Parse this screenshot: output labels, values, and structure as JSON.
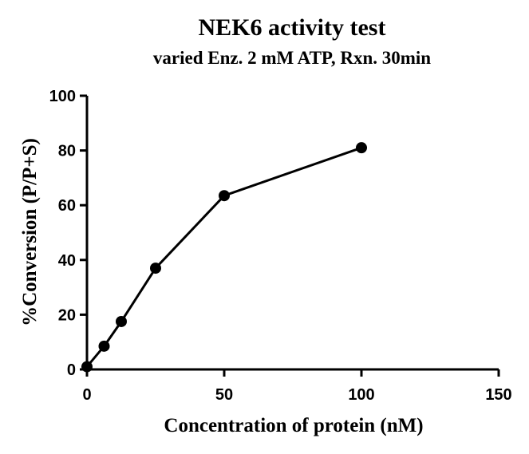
{
  "chart_data": {
    "type": "line",
    "title": "NEK6 activity test",
    "subtitle": "varied Enz. 2 mM ATP, Rxn. 30min",
    "xlabel": "Concentration of protein (nM)",
    "ylabel": "%Conversion (P/P+S)",
    "xlim": [
      0,
      150
    ],
    "ylim": [
      0,
      100
    ],
    "xticks": [
      0,
      50,
      100,
      150
    ],
    "yticks": [
      0,
      20,
      40,
      60,
      80,
      100
    ],
    "grid": false,
    "series": [
      {
        "x": [
          0,
          6.25,
          12.5,
          25,
          50,
          100
        ],
        "y": [
          1,
          8.5,
          17.5,
          37,
          63.5,
          81
        ]
      }
    ]
  }
}
